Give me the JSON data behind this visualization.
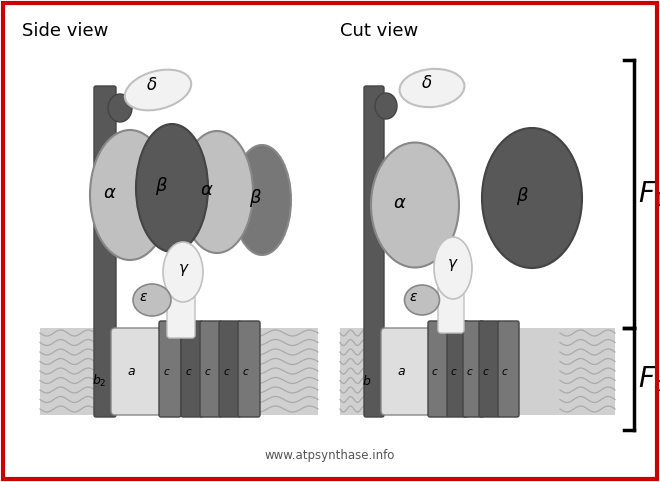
{
  "title_left": "Side view",
  "title_right": "Cut view",
  "website": "www.atpsynthase.info",
  "bg_color": "#ffffff",
  "border_color": "#cc0000",
  "colors": {
    "light_gray": "#c0c0c0",
    "mid_gray": "#888888",
    "dark_gray": "#585858",
    "very_light_gray": "#dedede",
    "white_ish": "#f2f2f2",
    "membrane_bg": "#d0d0d0",
    "wave_color": "#aaaaaa",
    "darker_gray": "#707070"
  }
}
